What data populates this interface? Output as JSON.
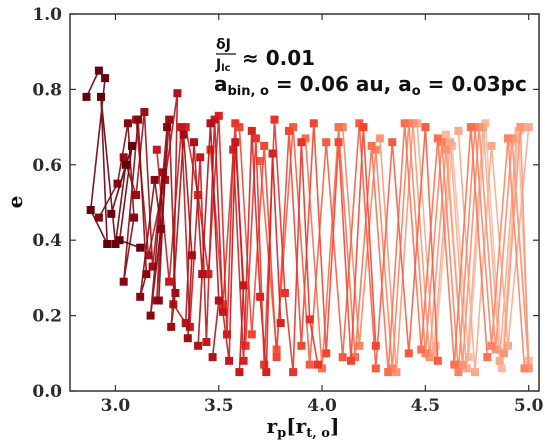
{
  "chart_data": {
    "type": "scatter",
    "title": "",
    "xlabel": {
      "base": "r",
      "sub": "p",
      "bracket_open": "[r",
      "bracket_sub": "t, o",
      "bracket_close": "]"
    },
    "ylabel": "e",
    "xlim": [
      2.78,
      5.05
    ],
    "ylim": [
      0.0,
      1.0
    ],
    "xticks": [
      3.0,
      3.5,
      4.0,
      4.5,
      5.0
    ],
    "xtick_labels": [
      "3.0",
      "3.5",
      "4.0",
      "4.5",
      "5.0"
    ],
    "yticks": [
      0.0,
      0.2,
      0.4,
      0.6,
      0.8,
      1.0
    ],
    "ytick_labels": [
      "0.0",
      "0.2",
      "0.4",
      "0.6",
      "0.8",
      "1.0"
    ],
    "grid": false,
    "legend": "none",
    "marker": "square",
    "color_map": "dark red to light salmon with increasing r_p",
    "colors": [
      "#67000d",
      "#a50f15",
      "#cb181d",
      "#ef3b2c",
      "#fb6a4a",
      "#fc9272",
      "#fcbba1"
    ],
    "annotations": {
      "ratio": {
        "numerator": "δJ",
        "denominator": "J",
        "denominator_sub": "lc",
        "relation": "≈ 0.01"
      },
      "params": {
        "a1": "a",
        "a1_sub": "bin, o",
        "a1_val": " = 0.06 au, ",
        "a2": "a",
        "a2_sub": "o",
        "a2_val": " = 0.03pc"
      }
    },
    "series": [
      {
        "x": [
          2.86,
          2.92,
          2.95,
          2.88,
          2.96,
          2.93,
          3.0,
          3.05,
          2.98,
          3.08,
          3.02,
          3.12
        ],
        "y": [
          0.78,
          0.85,
          0.83,
          0.48,
          0.39,
          0.78,
          0.39,
          0.6,
          0.47,
          0.65,
          0.4,
          0.38
        ]
      },
      {
        "x": [
          2.92,
          3.01,
          3.06,
          3.09,
          3.04,
          3.11,
          3.15,
          3.12,
          3.19,
          3.22,
          3.17,
          3.25,
          3.21
        ],
        "y": [
          0.46,
          0.55,
          0.71,
          0.46,
          0.29,
          0.72,
          0.31,
          0.25,
          0.56,
          0.43,
          0.2,
          0.7,
          0.24
        ]
      },
      {
        "x": [
          3.04,
          3.1,
          3.14,
          3.18,
          3.23,
          3.2,
          3.26,
          3.29,
          3.27,
          3.33,
          3.37,
          3.35
        ],
        "y": [
          0.62,
          0.52,
          0.74,
          0.33,
          0.58,
          0.24,
          0.72,
          0.26,
          0.17,
          0.68,
          0.36,
          0.14
        ]
      },
      {
        "x": [
          3.1,
          3.16,
          3.24,
          3.3,
          3.28,
          3.34,
          3.38,
          3.42,
          3.4,
          3.46,
          3.5,
          3.47
        ],
        "y": [
          0.72,
          0.36,
          0.56,
          0.79,
          0.23,
          0.18,
          0.66,
          0.31,
          0.12,
          0.71,
          0.24,
          0.09
        ]
      },
      {
        "x": [
          3.2,
          3.26,
          3.32,
          3.36,
          3.41,
          3.44,
          3.48,
          3.52,
          3.55,
          3.58,
          3.62,
          3.6
        ],
        "y": [
          0.64,
          0.29,
          0.7,
          0.17,
          0.62,
          0.13,
          0.72,
          0.21,
          0.08,
          0.66,
          0.28,
          0.05
        ]
      },
      {
        "x": [
          3.34,
          3.4,
          3.45,
          3.5,
          3.54,
          3.57,
          3.62,
          3.66,
          3.7,
          3.73,
          3.76,
          3.8
        ],
        "y": [
          0.7,
          0.52,
          0.31,
          0.73,
          0.15,
          0.64,
          0.08,
          0.69,
          0.25,
          0.05,
          0.63,
          0.18
        ]
      },
      {
        "x": [
          3.46,
          3.52,
          3.58,
          3.63,
          3.68,
          3.72,
          3.77,
          3.82,
          3.86,
          3.9,
          3.94,
          3.98
        ],
        "y": [
          0.64,
          0.23,
          0.71,
          0.12,
          0.67,
          0.07,
          0.72,
          0.26,
          0.05,
          0.66,
          0.19,
          0.07
        ]
      },
      {
        "x": [
          3.6,
          3.66,
          3.72,
          3.78,
          3.84,
          3.9,
          3.96,
          4.02,
          4.08,
          4.14,
          4.2,
          4.26
        ],
        "y": [
          0.7,
          0.15,
          0.65,
          0.09,
          0.69,
          0.12,
          0.71,
          0.1,
          0.66,
          0.08,
          0.7,
          0.12
        ]
      },
      {
        "x": [
          3.7,
          3.78,
          3.86,
          3.94,
          4.02,
          4.1,
          4.18,
          4.26,
          4.34,
          4.42,
          4.5,
          4.56
        ],
        "y": [
          0.61,
          0.11,
          0.7,
          0.07,
          0.66,
          0.09,
          0.71,
          0.06,
          0.66,
          0.1,
          0.7,
          0.08
        ]
      },
      {
        "x": [
          3.92,
          4.0,
          4.08,
          4.16,
          4.24,
          4.32,
          4.4,
          4.48,
          4.56,
          4.64,
          4.72,
          4.8
        ],
        "y": [
          0.67,
          0.06,
          0.7,
          0.09,
          0.65,
          0.05,
          0.71,
          0.11,
          0.67,
          0.07,
          0.7,
          0.09
        ]
      },
      {
        "x": [
          4.1,
          4.18,
          4.26,
          4.34,
          4.42,
          4.5,
          4.58,
          4.66,
          4.74,
          4.82,
          4.9,
          4.98
        ],
        "y": [
          0.7,
          0.12,
          0.64,
          0.06,
          0.71,
          0.1,
          0.66,
          0.05,
          0.7,
          0.12,
          0.67,
          0.06
        ]
      },
      {
        "x": [
          4.28,
          4.36,
          4.44,
          4.52,
          4.6,
          4.68,
          4.76,
          4.84,
          4.92,
          5.0,
          4.96,
          4.88
        ],
        "y": [
          0.67,
          0.05,
          0.71,
          0.09,
          0.64,
          0.07,
          0.7,
          0.11,
          0.67,
          0.06,
          0.7,
          0.1
        ]
      },
      {
        "x": [
          4.46,
          4.54,
          4.62,
          4.7,
          4.78,
          4.86,
          4.94,
          5.0,
          4.9,
          4.82,
          4.74,
          4.66
        ],
        "y": [
          0.71,
          0.1,
          0.66,
          0.06,
          0.7,
          0.08,
          0.67,
          0.7,
          0.12,
          0.65,
          0.05,
          0.69
        ]
      },
      {
        "x": [
          4.6,
          4.68,
          4.76,
          4.84,
          4.92,
          5.0,
          4.95,
          4.87,
          4.79,
          4.71,
          4.63,
          4.55
        ],
        "y": [
          0.68,
          0.07,
          0.7,
          0.11,
          0.66,
          0.08,
          0.69,
          0.06,
          0.71,
          0.09,
          0.65,
          0.12
        ]
      }
    ]
  }
}
